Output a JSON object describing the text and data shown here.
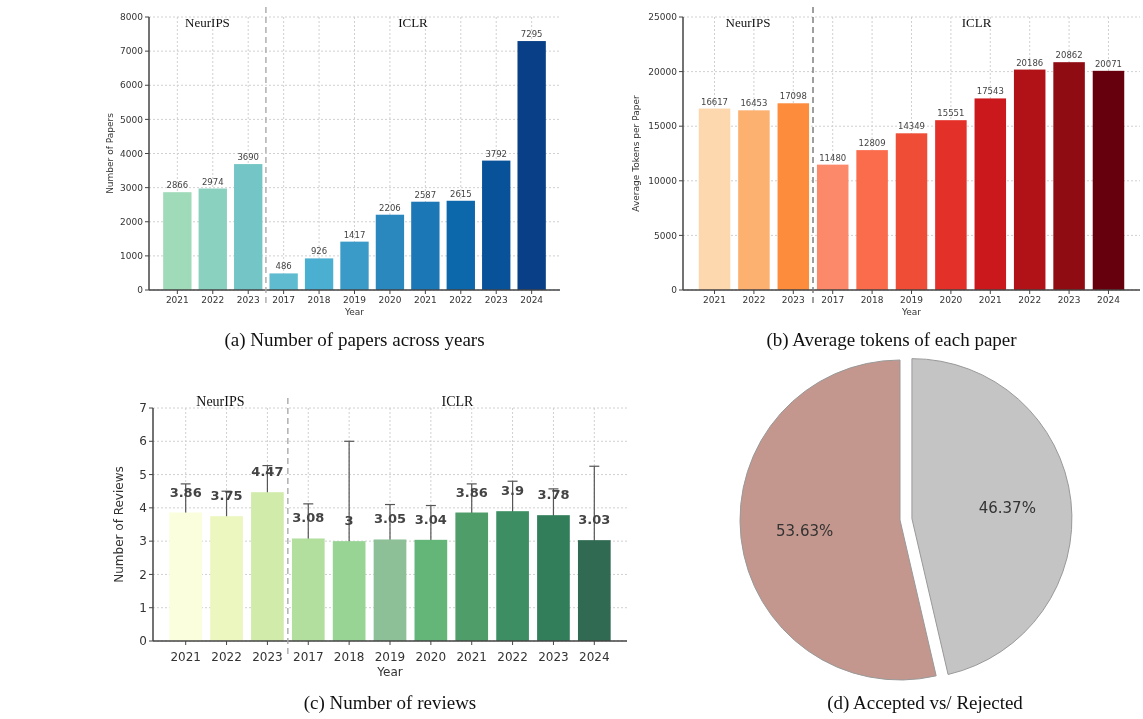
{
  "chart_data": [
    {
      "type": "bar",
      "title": "(a) Number of papers across years",
      "xlabel": "Year",
      "ylabel": "Number of Papers",
      "categories": [
        "2021",
        "2022",
        "2023",
        "2017",
        "2018",
        "2019",
        "2020",
        "2021",
        "2022",
        "2023",
        "2024"
      ],
      "values": [
        2866,
        2974,
        3690,
        486,
        926,
        1417,
        2206,
        2587,
        2615,
        3792,
        7295
      ],
      "colors": [
        "#9fdab9",
        "#8bd1bf",
        "#73c6c5",
        "#5fbcd0",
        "#4bafd1",
        "#3a9bc9",
        "#2a88bf",
        "#1b77b5",
        "#0d68ab",
        "#08529a",
        "#083f86"
      ],
      "ylim": [
        0,
        8000
      ],
      "yticks": [
        0,
        1000,
        2000,
        3000,
        4000,
        5000,
        6000,
        7000,
        8000
      ],
      "grid": true,
      "data_labels": true,
      "annotations": [
        "NeurIPS",
        "ICLR"
      ]
    },
    {
      "type": "bar",
      "title": "(b) Average tokens of each paper",
      "xlabel": "Year",
      "ylabel": "Average Tokens per Paper",
      "categories": [
        "2021",
        "2022",
        "2023",
        "2017",
        "2018",
        "2019",
        "2020",
        "2021",
        "2022",
        "2023",
        "2024"
      ],
      "values": [
        16617,
        16453,
        17098,
        11480,
        12809,
        14349,
        15551,
        17543,
        20186,
        20862,
        20071
      ],
      "colors": [
        "#fdd7ad",
        "#fdb171",
        "#fd8d3c",
        "#fc8a6a",
        "#fb6c4c",
        "#f04d36",
        "#e33129",
        "#cb181d",
        "#b01217",
        "#900c13",
        "#67000d"
      ],
      "ylim": [
        0,
        25000
      ],
      "yticks": [
        0,
        5000,
        10000,
        15000,
        20000,
        25000
      ],
      "grid": true,
      "data_labels": true,
      "annotations": [
        "NeurIPS",
        "ICLR"
      ]
    },
    {
      "type": "bar",
      "title": "(c) Number of reviews",
      "xlabel": "Year",
      "ylabel": "Number of Reviews",
      "categories": [
        "2021",
        "2022",
        "2023",
        "2017",
        "2018",
        "2019",
        "2020",
        "2021",
        "2022",
        "2023",
        "2024"
      ],
      "values": [
        3.86,
        3.75,
        4.47,
        3.08,
        3,
        3.05,
        3.04,
        3.86,
        3.9,
        3.78,
        3.03
      ],
      "errors": [
        0.86,
        0.75,
        0.8,
        1.04,
        3.0,
        1.05,
        1.03,
        0.86,
        0.9,
        0.79,
        2.22
      ],
      "colors": [
        "#fbfedc",
        "#ecf7bf",
        "#d1ebab",
        "#b2de9e",
        "#98d494",
        "#8dc096",
        "#63b578",
        "#4f9e6a",
        "#3d8f63",
        "#327e5b",
        "#306a52"
      ],
      "ylim": [
        0,
        7
      ],
      "yticks": [
        0,
        1,
        2,
        3,
        4,
        5,
        6,
        7
      ],
      "grid": true,
      "data_labels": true,
      "annotations": [
        "NeurIPS",
        "ICLR"
      ]
    },
    {
      "type": "pie",
      "title": "(d) Accepted vs/ Rejected",
      "categories": [
        null,
        null
      ],
      "values": [
        46.37,
        53.63
      ],
      "colors": [
        "#c4c4c4",
        "#c4978e"
      ],
      "value_labels": [
        "46.37%",
        "53.63%"
      ]
    }
  ]
}
